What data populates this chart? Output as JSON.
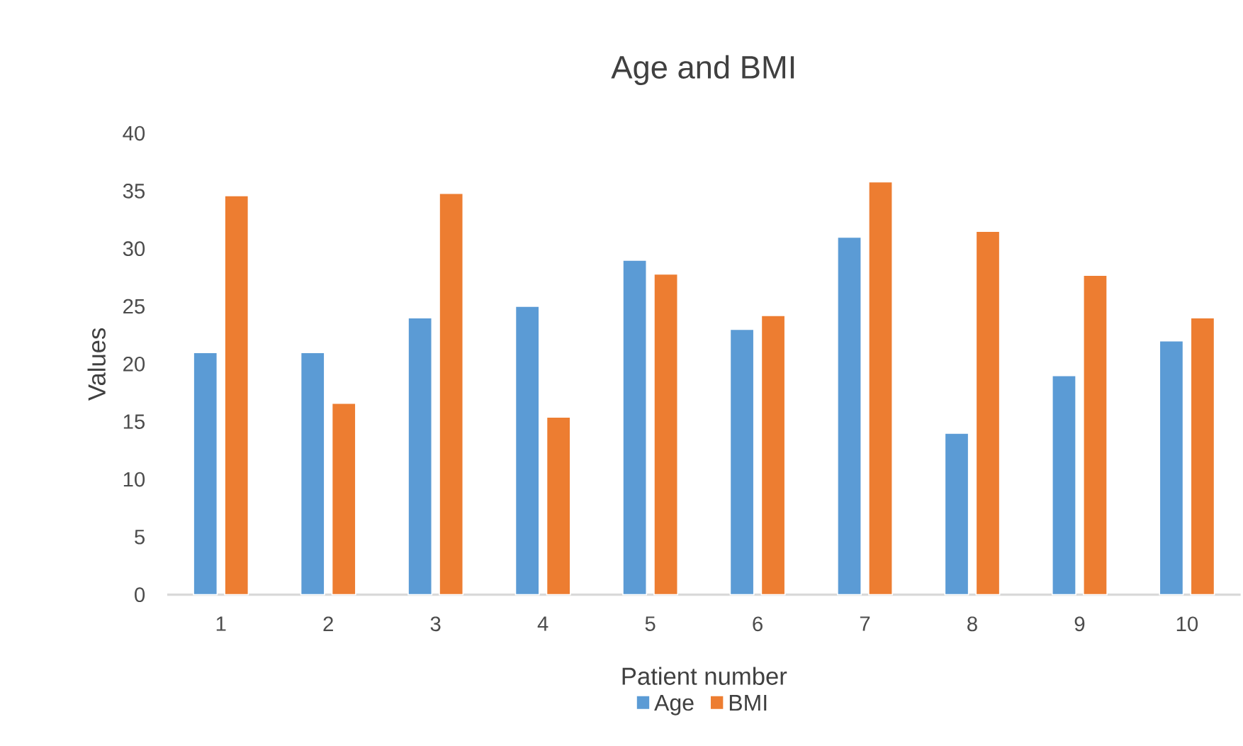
{
  "chart_data": {
    "type": "bar",
    "title": "Age and BMI",
    "xlabel": "Patient number",
    "ylabel": "Values",
    "categories": [
      "1",
      "2",
      "3",
      "4",
      "5",
      "6",
      "7",
      "8",
      "9",
      "10"
    ],
    "series": [
      {
        "name": "Age",
        "color": "#5b9bd5",
        "values": [
          21,
          21,
          24,
          25,
          29,
          23,
          31,
          14,
          19,
          22
        ]
      },
      {
        "name": "BMI",
        "color": "#ed7d31",
        "values": [
          34.6,
          16.6,
          34.8,
          15.4,
          27.8,
          24.2,
          35.8,
          31.5,
          27.7,
          24.0
        ]
      }
    ],
    "ylim": [
      0,
      40
    ],
    "yticks": [
      0,
      5,
      10,
      15,
      20,
      25,
      30,
      35,
      40
    ],
    "grid": false,
    "legend": "bottom"
  }
}
